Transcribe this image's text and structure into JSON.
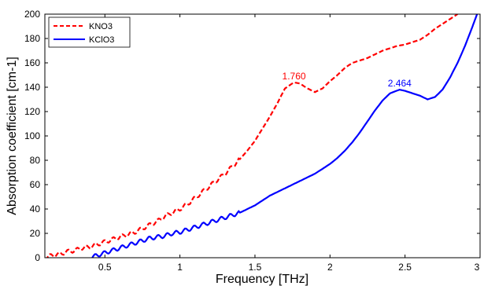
{
  "chart_data": {
    "type": "line",
    "title": "",
    "xlabel": "Frequency [THz]",
    "ylabel": "Absorption coefficient [cm-1]",
    "xlim": [
      0.1,
      3.0
    ],
    "ylim": [
      0,
      200
    ],
    "xticks": [
      0.5,
      1,
      1.5,
      2,
      2.5,
      3
    ],
    "xtick_labels": [
      "0.5",
      "1",
      "1.5",
      "2",
      "2.5",
      "3"
    ],
    "yticks": [
      0,
      20,
      40,
      60,
      80,
      100,
      120,
      140,
      160,
      180,
      200
    ],
    "ytick_labels": [
      "0",
      "20",
      "40",
      "60",
      "80",
      "100",
      "120",
      "140",
      "160",
      "180",
      "200"
    ],
    "grid": false,
    "legend_position": "top-left",
    "series": [
      {
        "name": "KNO3",
        "color": "#ff0000",
        "style": "dashed",
        "x": [
          0.1,
          0.15,
          0.2,
          0.25,
          0.3,
          0.35,
          0.4,
          0.45,
          0.5,
          0.55,
          0.6,
          0.65,
          0.7,
          0.75,
          0.8,
          0.85,
          0.9,
          0.95,
          1.0,
          1.05,
          1.1,
          1.15,
          1.2,
          1.25,
          1.3,
          1.35,
          1.4,
          1.45,
          1.5,
          1.55,
          1.6,
          1.65,
          1.7,
          1.76,
          1.8,
          1.85,
          1.9,
          1.95,
          2.0,
          2.05,
          2.1,
          2.15,
          2.2,
          2.25,
          2.3,
          2.35,
          2.4,
          2.45,
          2.5,
          2.55,
          2.6,
          2.65,
          2.7,
          2.75,
          2.8,
          2.85
        ],
        "y": [
          0,
          2,
          3,
          5,
          6,
          8,
          9,
          11,
          13,
          15,
          17,
          19,
          21,
          24,
          27,
          30,
          34,
          37,
          40,
          44,
          49,
          54,
          59,
          64,
          69,
          75,
          81,
          88,
          96,
          106,
          116,
          127,
          139,
          144,
          143,
          139,
          136,
          139,
          145,
          150,
          156,
          160,
          162,
          164,
          167,
          170,
          172,
          174,
          175,
          177,
          179,
          183,
          188,
          192,
          196,
          200
        ]
      },
      {
        "name": "KClO3",
        "color": "#0000ff",
        "style": "solid",
        "x": [
          0.4,
          0.45,
          0.5,
          0.55,
          0.6,
          0.65,
          0.7,
          0.75,
          0.8,
          0.85,
          0.9,
          0.95,
          1.0,
          1.05,
          1.1,
          1.15,
          1.2,
          1.25,
          1.3,
          1.35,
          1.4,
          1.45,
          1.5,
          1.55,
          1.6,
          1.65,
          1.7,
          1.75,
          1.8,
          1.85,
          1.9,
          1.95,
          2.0,
          2.05,
          2.1,
          2.15,
          2.2,
          2.25,
          2.3,
          2.35,
          2.4,
          2.464,
          2.5,
          2.55,
          2.6,
          2.65,
          2.7,
          2.75,
          2.8,
          2.85,
          2.9,
          2.95,
          2.98
        ],
        "y": [
          0,
          2,
          4,
          6,
          8,
          10,
          12,
          14,
          16,
          17,
          18,
          20,
          21,
          23,
          25,
          27,
          29,
          31,
          33,
          35,
          37,
          40,
          43,
          47,
          51,
          54,
          57,
          60,
          63,
          66,
          69,
          73,
          77,
          82,
          88,
          95,
          103,
          112,
          121,
          129,
          135,
          138,
          137,
          135,
          133,
          130,
          132,
          138,
          148,
          160,
          174,
          190,
          200
        ]
      }
    ],
    "annotations": [
      {
        "text": "1.760",
        "x": 1.76,
        "y": 144,
        "color": "#ff0000"
      },
      {
        "text": "2.464",
        "x": 2.464,
        "y": 138,
        "color": "#0000ff"
      }
    ]
  }
}
